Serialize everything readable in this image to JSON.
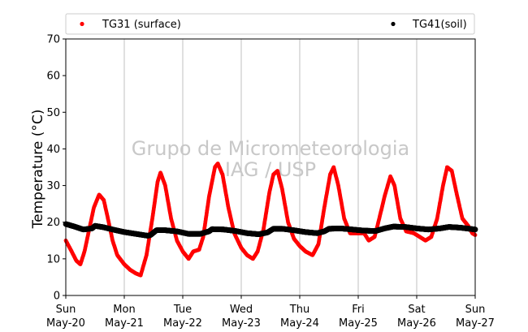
{
  "chart_data": {
    "type": "scatter",
    "ylabel": "Temperature (°C)",
    "xlabel": "",
    "ylim": [
      0,
      70
    ],
    "yticks": [
      0,
      10,
      20,
      30,
      40,
      50,
      60,
      70
    ],
    "xlim": [
      0,
      7
    ],
    "xticks": [
      {
        "x": 0,
        "day": "Sun",
        "date": "May-20"
      },
      {
        "x": 1,
        "day": "Mon",
        "date": "May-21"
      },
      {
        "x": 2,
        "day": "Tue",
        "date": "May-22"
      },
      {
        "x": 3,
        "day": "Wed",
        "date": "May-23"
      },
      {
        "x": 4,
        "day": "Thu",
        "date": "May-24"
      },
      {
        "x": 5,
        "day": "Fri",
        "date": "May-25"
      },
      {
        "x": 6,
        "day": "Sat",
        "date": "May-26"
      },
      {
        "x": 7,
        "day": "Sun",
        "date": "May-27"
      }
    ],
    "grid": "vertical",
    "legend_position": "top",
    "watermark": [
      "Grupo de Micrometeorologia",
      "IAG / USP"
    ],
    "series": [
      {
        "name": "TG31 (surface)",
        "color": "#ff0000",
        "points": [
          [
            0.0,
            15.0
          ],
          [
            0.1,
            12.0
          ],
          [
            0.18,
            9.5
          ],
          [
            0.25,
            8.5
          ],
          [
            0.32,
            12.0
          ],
          [
            0.4,
            18.0
          ],
          [
            0.48,
            24.0
          ],
          [
            0.57,
            27.5
          ],
          [
            0.65,
            26.0
          ],
          [
            0.72,
            21.0
          ],
          [
            0.8,
            15.0
          ],
          [
            0.88,
            11.0
          ],
          [
            1.0,
            8.5
          ],
          [
            1.1,
            7.0
          ],
          [
            1.2,
            6.0
          ],
          [
            1.28,
            5.5
          ],
          [
            1.38,
            11.0
          ],
          [
            1.48,
            21.0
          ],
          [
            1.57,
            31.0
          ],
          [
            1.62,
            33.5
          ],
          [
            1.7,
            30.0
          ],
          [
            1.8,
            21.0
          ],
          [
            1.9,
            15.0
          ],
          [
            2.0,
            12.0
          ],
          [
            2.1,
            10.0
          ],
          [
            2.18,
            12.0
          ],
          [
            2.28,
            12.5
          ],
          [
            2.35,
            16.0
          ],
          [
            2.45,
            27.0
          ],
          [
            2.55,
            35.0
          ],
          [
            2.6,
            36.0
          ],
          [
            2.68,
            33.0
          ],
          [
            2.78,
            24.0
          ],
          [
            2.88,
            17.0
          ],
          [
            3.0,
            13.0
          ],
          [
            3.1,
            11.0
          ],
          [
            3.2,
            10.0
          ],
          [
            3.28,
            12.0
          ],
          [
            3.38,
            18.0
          ],
          [
            3.48,
            28.0
          ],
          [
            3.55,
            33.0
          ],
          [
            3.62,
            34.0
          ],
          [
            3.7,
            29.0
          ],
          [
            3.8,
            20.0
          ],
          [
            3.9,
            15.5
          ],
          [
            4.0,
            13.5
          ],
          [
            4.1,
            12.0
          ],
          [
            4.22,
            11.0
          ],
          [
            4.32,
            14.0
          ],
          [
            4.42,
            24.0
          ],
          [
            4.52,
            33.0
          ],
          [
            4.58,
            35.0
          ],
          [
            4.66,
            30.0
          ],
          [
            4.76,
            21.0
          ],
          [
            4.86,
            17.0
          ],
          [
            5.0,
            17.0
          ],
          [
            5.1,
            17.0
          ],
          [
            5.18,
            15.0
          ],
          [
            5.28,
            16.0
          ],
          [
            5.36,
            21.0
          ],
          [
            5.45,
            27.0
          ],
          [
            5.55,
            32.5
          ],
          [
            5.62,
            30.0
          ],
          [
            5.72,
            21.0
          ],
          [
            5.82,
            17.5
          ],
          [
            5.95,
            17.0
          ],
          [
            6.05,
            16.0
          ],
          [
            6.15,
            15.0
          ],
          [
            6.25,
            16.0
          ],
          [
            6.35,
            21.0
          ],
          [
            6.45,
            30.0
          ],
          [
            6.52,
            35.0
          ],
          [
            6.6,
            34.0
          ],
          [
            6.68,
            28.0
          ],
          [
            6.78,
            21.0
          ],
          [
            6.88,
            19.0
          ],
          [
            6.95,
            17.0
          ],
          [
            7.0,
            16.5
          ]
        ]
      },
      {
        "name": "TG41(soil)",
        "color": "#000000",
        "points": [
          [
            0.0,
            19.5
          ],
          [
            0.15,
            18.8
          ],
          [
            0.3,
            18.0
          ],
          [
            0.45,
            18.3
          ],
          [
            0.5,
            19.0
          ],
          [
            0.65,
            18.6
          ],
          [
            0.8,
            18.0
          ],
          [
            1.0,
            17.3
          ],
          [
            1.2,
            16.8
          ],
          [
            1.4,
            16.3
          ],
          [
            1.45,
            16.5
          ],
          [
            1.55,
            17.8
          ],
          [
            1.7,
            17.8
          ],
          [
            1.9,
            17.5
          ],
          [
            2.1,
            16.8
          ],
          [
            2.3,
            16.8
          ],
          [
            2.45,
            17.5
          ],
          [
            2.5,
            18.1
          ],
          [
            2.7,
            18.0
          ],
          [
            2.9,
            17.6
          ],
          [
            3.1,
            17.0
          ],
          [
            3.3,
            16.7
          ],
          [
            3.45,
            17.2
          ],
          [
            3.55,
            18.2
          ],
          [
            3.7,
            18.2
          ],
          [
            3.9,
            17.8
          ],
          [
            4.1,
            17.3
          ],
          [
            4.3,
            17.0
          ],
          [
            4.42,
            17.5
          ],
          [
            4.5,
            18.2
          ],
          [
            4.7,
            18.3
          ],
          [
            4.9,
            18.0
          ],
          [
            5.1,
            17.7
          ],
          [
            5.3,
            17.6
          ],
          [
            5.45,
            18.3
          ],
          [
            5.6,
            18.8
          ],
          [
            5.8,
            18.7
          ],
          [
            6.0,
            18.3
          ],
          [
            6.2,
            18.0
          ],
          [
            6.4,
            18.3
          ],
          [
            6.55,
            18.7
          ],
          [
            6.75,
            18.5
          ],
          [
            7.0,
            18.0
          ]
        ]
      }
    ]
  }
}
